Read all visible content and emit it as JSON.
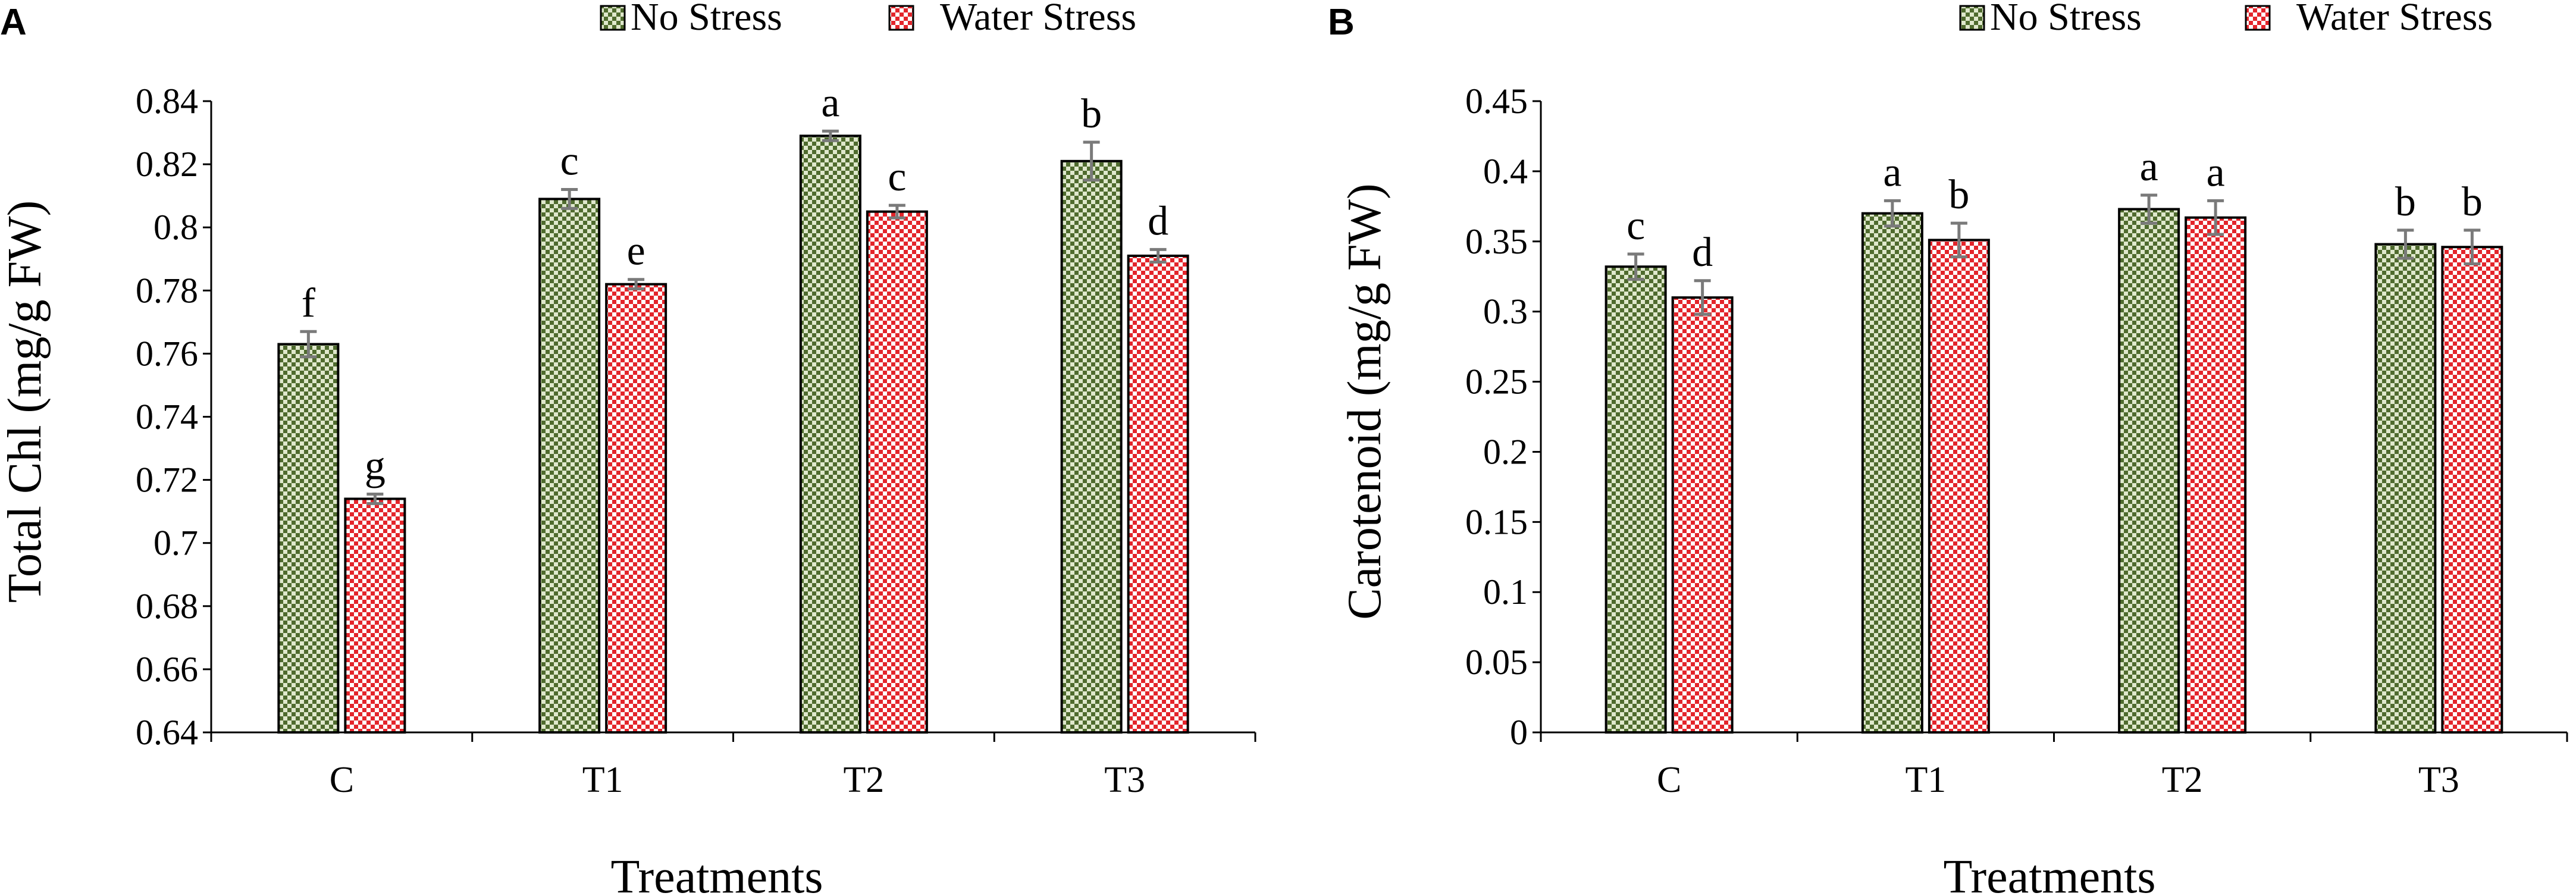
{
  "colors": {
    "no_stress_dark": "#4f6b2e",
    "no_stress_light": "#dfe8cc",
    "water_stress_dark": "#e3252b",
    "water_stress_light": "#ffffff"
  },
  "chart_data": [
    {
      "panel": "A",
      "type": "bar",
      "title": "",
      "xlabel": "Treatments",
      "ylabel": "Total Chl  (mg/g FW)",
      "ylim": [
        0.64,
        0.84
      ],
      "ytick_step": 0.02,
      "yticks": [
        "0.64",
        "0.66",
        "0.68",
        "0.7",
        "0.72",
        "0.74",
        "0.76",
        "0.78",
        "0.8",
        "0.82",
        "0.84"
      ],
      "categories": [
        "C",
        "T1",
        "T2",
        "T3"
      ],
      "legend": [
        "No Stress",
        "Water Stress"
      ],
      "legend_position": "top-right",
      "series": [
        {
          "name": "No Stress",
          "values": [
            0.763,
            0.809,
            0.829,
            0.821
          ],
          "errors": [
            0.004,
            0.003,
            0.0015,
            0.006
          ],
          "letters": [
            "f",
            "c",
            "a",
            "b"
          ]
        },
        {
          "name": "Water Stress",
          "values": [
            0.714,
            0.782,
            0.805,
            0.791
          ],
          "errors": [
            0.0015,
            0.0015,
            0.002,
            0.002
          ],
          "letters": [
            "g",
            "e",
            "c",
            "d"
          ]
        }
      ]
    },
    {
      "panel": "B",
      "type": "bar",
      "title": "",
      "xlabel": "Treatments",
      "ylabel": "Carotenoid  (mg/g FW)",
      "ylim": [
        0,
        0.45
      ],
      "ytick_step": 0.05,
      "yticks": [
        "0",
        "0.05",
        "0.1",
        "0.15",
        "0.2",
        "0.25",
        "0.3",
        "0.35",
        "0.4",
        "0.45"
      ],
      "categories": [
        "C",
        "T1",
        "T2",
        "T3"
      ],
      "legend": [
        "No Stress",
        "Water Stress"
      ],
      "legend_position": "top-right",
      "series": [
        {
          "name": "No Stress",
          "values": [
            0.332,
            0.37,
            0.373,
            0.348
          ],
          "errors": [
            0.009,
            0.009,
            0.01,
            0.01
          ],
          "letters": [
            "c",
            "a",
            "a",
            "b"
          ]
        },
        {
          "name": "Water Stress",
          "values": [
            0.31,
            0.351,
            0.367,
            0.346
          ],
          "errors": [
            0.012,
            0.012,
            0.012,
            0.012
          ],
          "letters": [
            "d",
            "b",
            "a",
            "b"
          ]
        }
      ]
    }
  ]
}
